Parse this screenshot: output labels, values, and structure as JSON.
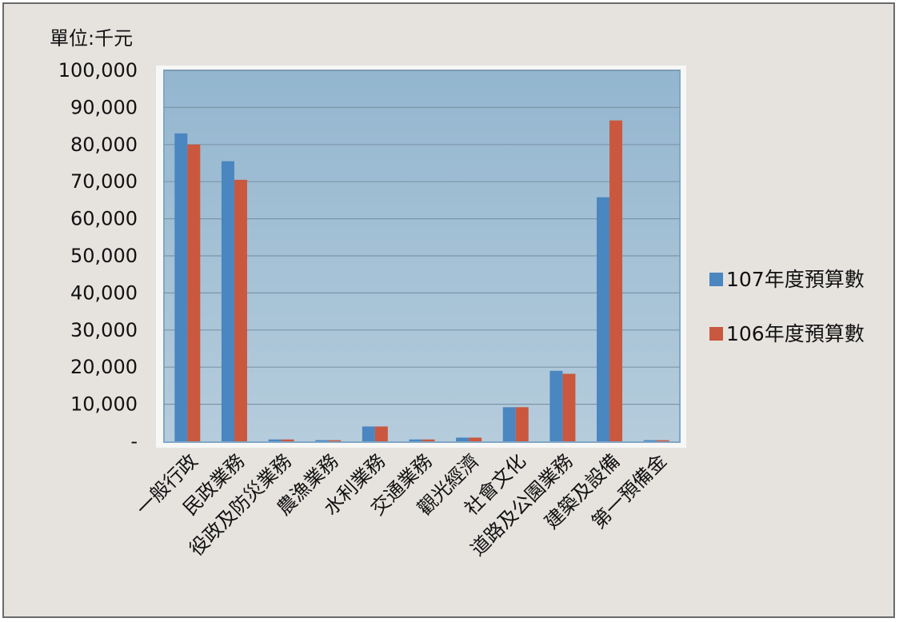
{
  "chart_data": {
    "type": "bar",
    "unit_label": "單位:千元",
    "categories": [
      "一般行政",
      "民政業務",
      "役政及防災業務",
      "農漁業務",
      "水利業務",
      "交通業務",
      "觀光經濟",
      "社會文化",
      "道路及公園業務",
      "建築及設備",
      "第一預備金"
    ],
    "series": [
      {
        "name": "107年度預算數",
        "color": "#4a86c0",
        "values": [
          83000,
          75500,
          500,
          300,
          4000,
          500,
          1000,
          9200,
          19000,
          65800,
          300
        ]
      },
      {
        "name": "106年度預算數",
        "color": "#c9583f",
        "values": [
          80000,
          70500,
          500,
          300,
          4000,
          500,
          1000,
          9200,
          18200,
          86500,
          300
        ]
      }
    ],
    "ylim": [
      0,
      100000
    ],
    "y_ticks": [
      {
        "value": 100000,
        "label": "100,000"
      },
      {
        "value": 90000,
        "label": "90,000"
      },
      {
        "value": 80000,
        "label": "80,000"
      },
      {
        "value": 70000,
        "label": "70,000"
      },
      {
        "value": 60000,
        "label": "60,000"
      },
      {
        "value": 50000,
        "label": "50,000"
      },
      {
        "value": 40000,
        "label": "40,000"
      },
      {
        "value": 30000,
        "label": "30,000"
      },
      {
        "value": 20000,
        "label": "20,000"
      },
      {
        "value": 10000,
        "label": "10,000"
      },
      {
        "value": 0,
        "label": "-"
      }
    ],
    "grid": true,
    "legend_position": "right",
    "plot_background": "#a8c3d6"
  }
}
